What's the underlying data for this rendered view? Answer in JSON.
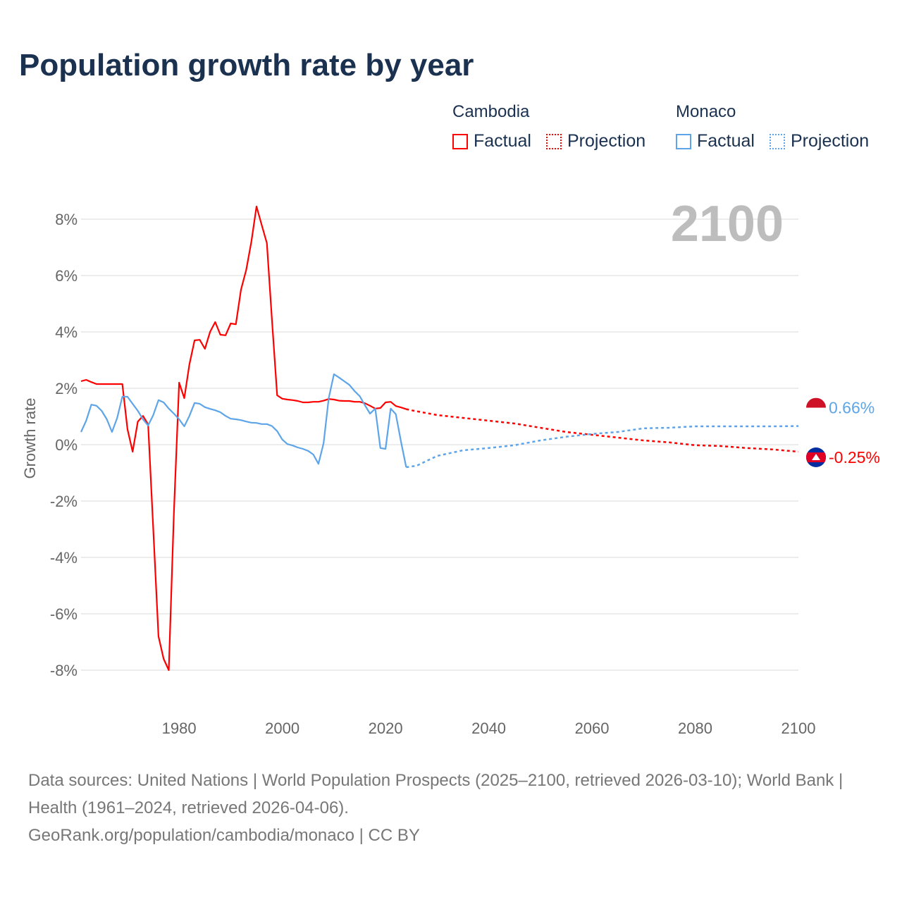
{
  "title": "Population growth rate by year",
  "legend": {
    "groups": [
      {
        "name": "Cambodia",
        "factual": "Factual",
        "projection": "Projection",
        "color": "#ff0000"
      },
      {
        "name": "Monaco",
        "factual": "Factual",
        "projection": "Projection",
        "color": "#5da5e8"
      }
    ]
  },
  "chart_data": {
    "type": "line",
    "title": "Population growth rate by year",
    "ylabel": "Growth rate",
    "xlabel": "",
    "year_label": "2100",
    "xlim": [
      1961,
      2100
    ],
    "ylim": [
      -8,
      8
    ],
    "x_ticks": [
      "1980",
      "2000",
      "2020",
      "2040",
      "2060",
      "2080",
      "2100"
    ],
    "x_tick_values": [
      1980,
      2000,
      2020,
      2040,
      2060,
      2080,
      2100
    ],
    "y_ticks": [
      "8%",
      "6%",
      "4%",
      "2%",
      "0%",
      "-2%",
      "-4%",
      "-6%",
      "-8%"
    ],
    "y_tick_values": [
      8,
      6,
      4,
      2,
      0,
      -2,
      -4,
      -6,
      -8
    ],
    "grid": true,
    "series": [
      {
        "name": "Cambodia",
        "color": "#ff0000",
        "end_label": "-0.25%",
        "factual": {
          "x": [
            1961,
            1962,
            1963,
            1964,
            1965,
            1966,
            1967,
            1968,
            1969,
            1970,
            1971,
            1972,
            1973,
            1974,
            1975,
            1976,
            1977,
            1978,
            1979,
            1980,
            1981,
            1982,
            1983,
            1984,
            1985,
            1986,
            1987,
            1988,
            1989,
            1990,
            1991,
            1992,
            1993,
            1994,
            1995,
            1996,
            1997,
            1998,
            1999,
            2000,
            2001,
            2002,
            2003,
            2004,
            2005,
            2006,
            2007,
            2008,
            2009,
            2010,
            2011,
            2012,
            2013,
            2014,
            2015,
            2016,
            2017,
            2018,
            2019,
            2020,
            2021,
            2022,
            2023,
            2024
          ],
          "y": [
            2.25,
            2.3,
            2.22,
            2.15,
            2.15,
            2.15,
            2.15,
            2.15,
            2.15,
            0.55,
            -0.25,
            0.82,
            1.02,
            0.72,
            -3.0,
            -6.8,
            -7.6,
            -8.0,
            -2.4,
            2.2,
            1.65,
            2.85,
            3.7,
            3.72,
            3.4,
            4.0,
            4.35,
            3.9,
            3.88,
            4.3,
            4.27,
            5.5,
            6.2,
            7.2,
            8.45,
            7.8,
            7.15,
            4.4,
            1.75,
            1.63,
            1.6,
            1.58,
            1.55,
            1.5,
            1.5,
            1.52,
            1.52,
            1.56,
            1.62,
            1.6,
            1.56,
            1.55,
            1.55,
            1.52,
            1.52,
            1.47,
            1.38,
            1.28,
            1.3,
            1.5,
            1.52,
            1.37,
            1.32,
            1.26
          ]
        },
        "projection": {
          "x": [
            2024,
            2025,
            2030,
            2035,
            2040,
            2045,
            2050,
            2055,
            2060,
            2065,
            2070,
            2075,
            2080,
            2085,
            2090,
            2095,
            2100
          ],
          "y": [
            1.26,
            1.22,
            1.05,
            0.95,
            0.85,
            0.75,
            0.6,
            0.45,
            0.35,
            0.25,
            0.15,
            0.08,
            -0.02,
            -0.05,
            -0.12,
            -0.17,
            -0.25
          ]
        }
      },
      {
        "name": "Monaco",
        "color": "#5da5e8",
        "end_label": "0.66%",
        "factual": {
          "x": [
            1961,
            1962,
            1963,
            1964,
            1965,
            1966,
            1967,
            1968,
            1969,
            1970,
            1971,
            1972,
            1973,
            1974,
            1975,
            1976,
            1977,
            1978,
            1979,
            1980,
            1981,
            1982,
            1983,
            1984,
            1985,
            1986,
            1987,
            1988,
            1989,
            1990,
            1991,
            1992,
            1993,
            1994,
            1995,
            1996,
            1997,
            1998,
            1999,
            2000,
            2001,
            2002,
            2003,
            2004,
            2005,
            2006,
            2007,
            2008,
            2009,
            2010,
            2011,
            2012,
            2013,
            2014,
            2015,
            2016,
            2017,
            2018,
            2019,
            2020,
            2021,
            2022,
            2023,
            2024
          ],
          "y": [
            0.45,
            0.85,
            1.42,
            1.38,
            1.2,
            0.9,
            0.45,
            0.95,
            1.7,
            1.7,
            1.45,
            1.2,
            0.9,
            0.68,
            1.05,
            1.58,
            1.5,
            1.28,
            1.1,
            0.9,
            0.65,
            1.02,
            1.48,
            1.45,
            1.33,
            1.27,
            1.22,
            1.15,
            1.02,
            0.92,
            0.9,
            0.87,
            0.82,
            0.78,
            0.77,
            0.73,
            0.73,
            0.66,
            0.48,
            0.18,
            0.02,
            -0.03,
            -0.1,
            -0.15,
            -0.22,
            -0.35,
            -0.68,
            0.05,
            1.65,
            2.5,
            2.38,
            2.25,
            2.12,
            1.9,
            1.72,
            1.4,
            1.1,
            1.28,
            -0.12,
            -0.15,
            1.28,
            1.08,
            0.1,
            -0.8
          ]
        },
        "projection": {
          "x": [
            2024,
            2026,
            2030,
            2035,
            2040,
            2045,
            2050,
            2055,
            2060,
            2065,
            2070,
            2075,
            2080,
            2085,
            2090,
            2095,
            2100
          ],
          "y": [
            -0.8,
            -0.75,
            -0.4,
            -0.2,
            -0.12,
            -0.02,
            0.15,
            0.28,
            0.38,
            0.45,
            0.58,
            0.6,
            0.65,
            0.65,
            0.65,
            0.65,
            0.66
          ]
        }
      }
    ]
  },
  "footer": {
    "sources": "Data sources: United Nations | World Population Prospects (2025–2100, retrieved 2026-03-10); World Bank | Health (1961–2024, retrieved 2026-04-06).",
    "attribution": "GeoRank.org/population/cambodia/monaco | CC BY"
  }
}
